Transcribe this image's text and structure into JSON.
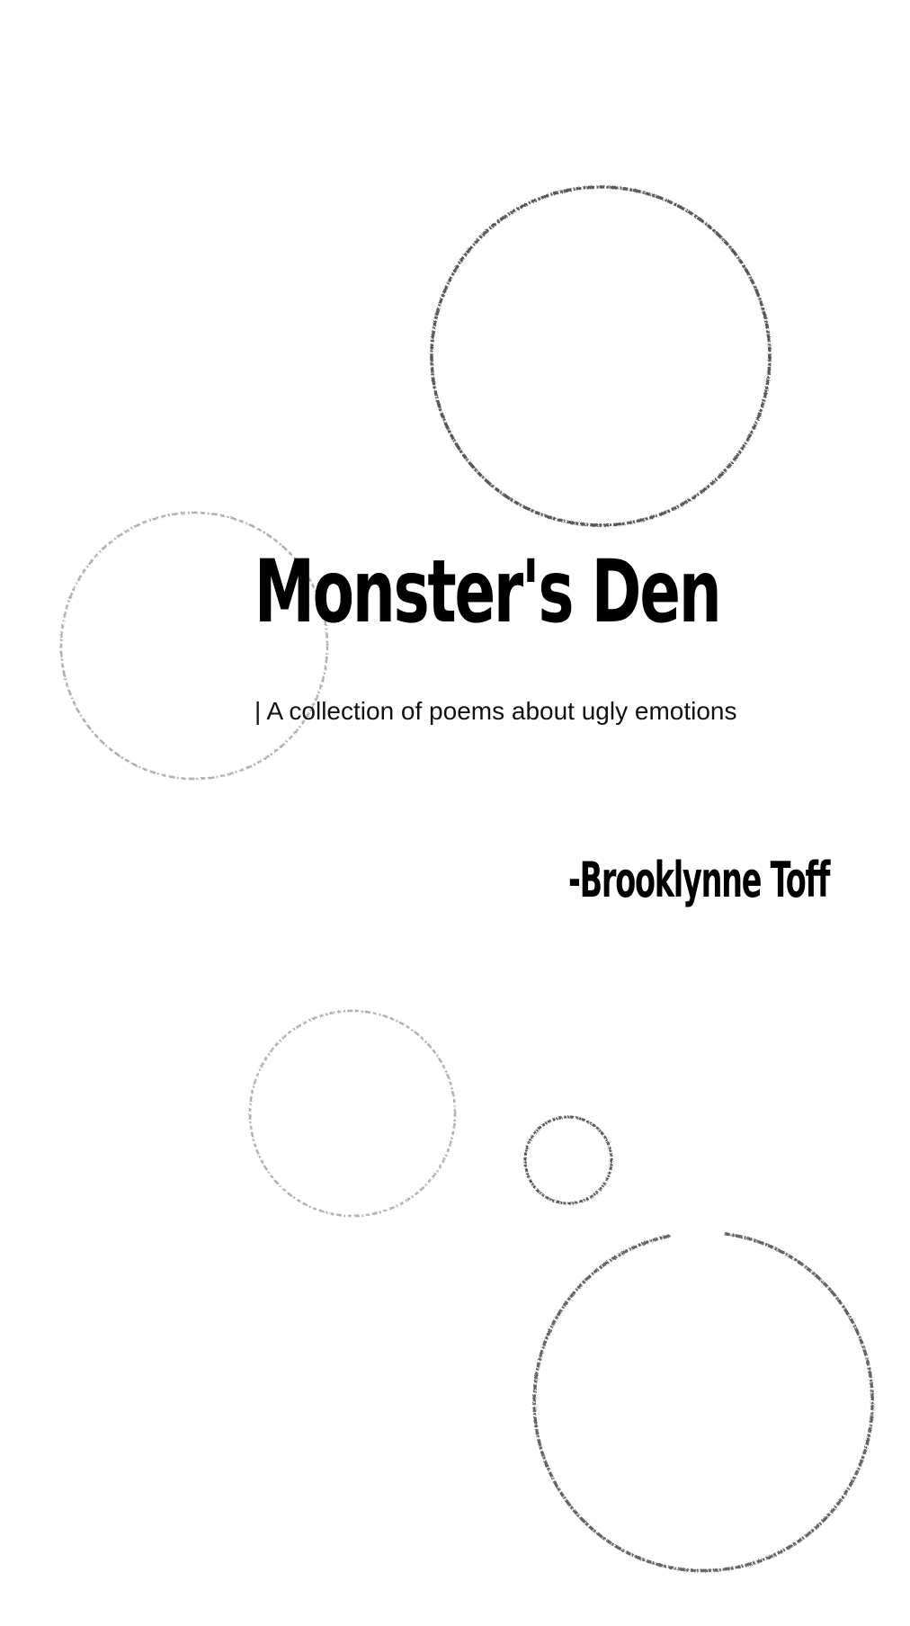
{
  "cover": {
    "title": "Monster's Den",
    "subtitle": "| A collection of poems about ugly emotions",
    "author": "-Brooklynne Toff"
  },
  "colors": {
    "background": "#ffffff",
    "text": "#000000",
    "ring_dark": "#3a3a3a",
    "ring_light": "#9a9a9a"
  }
}
